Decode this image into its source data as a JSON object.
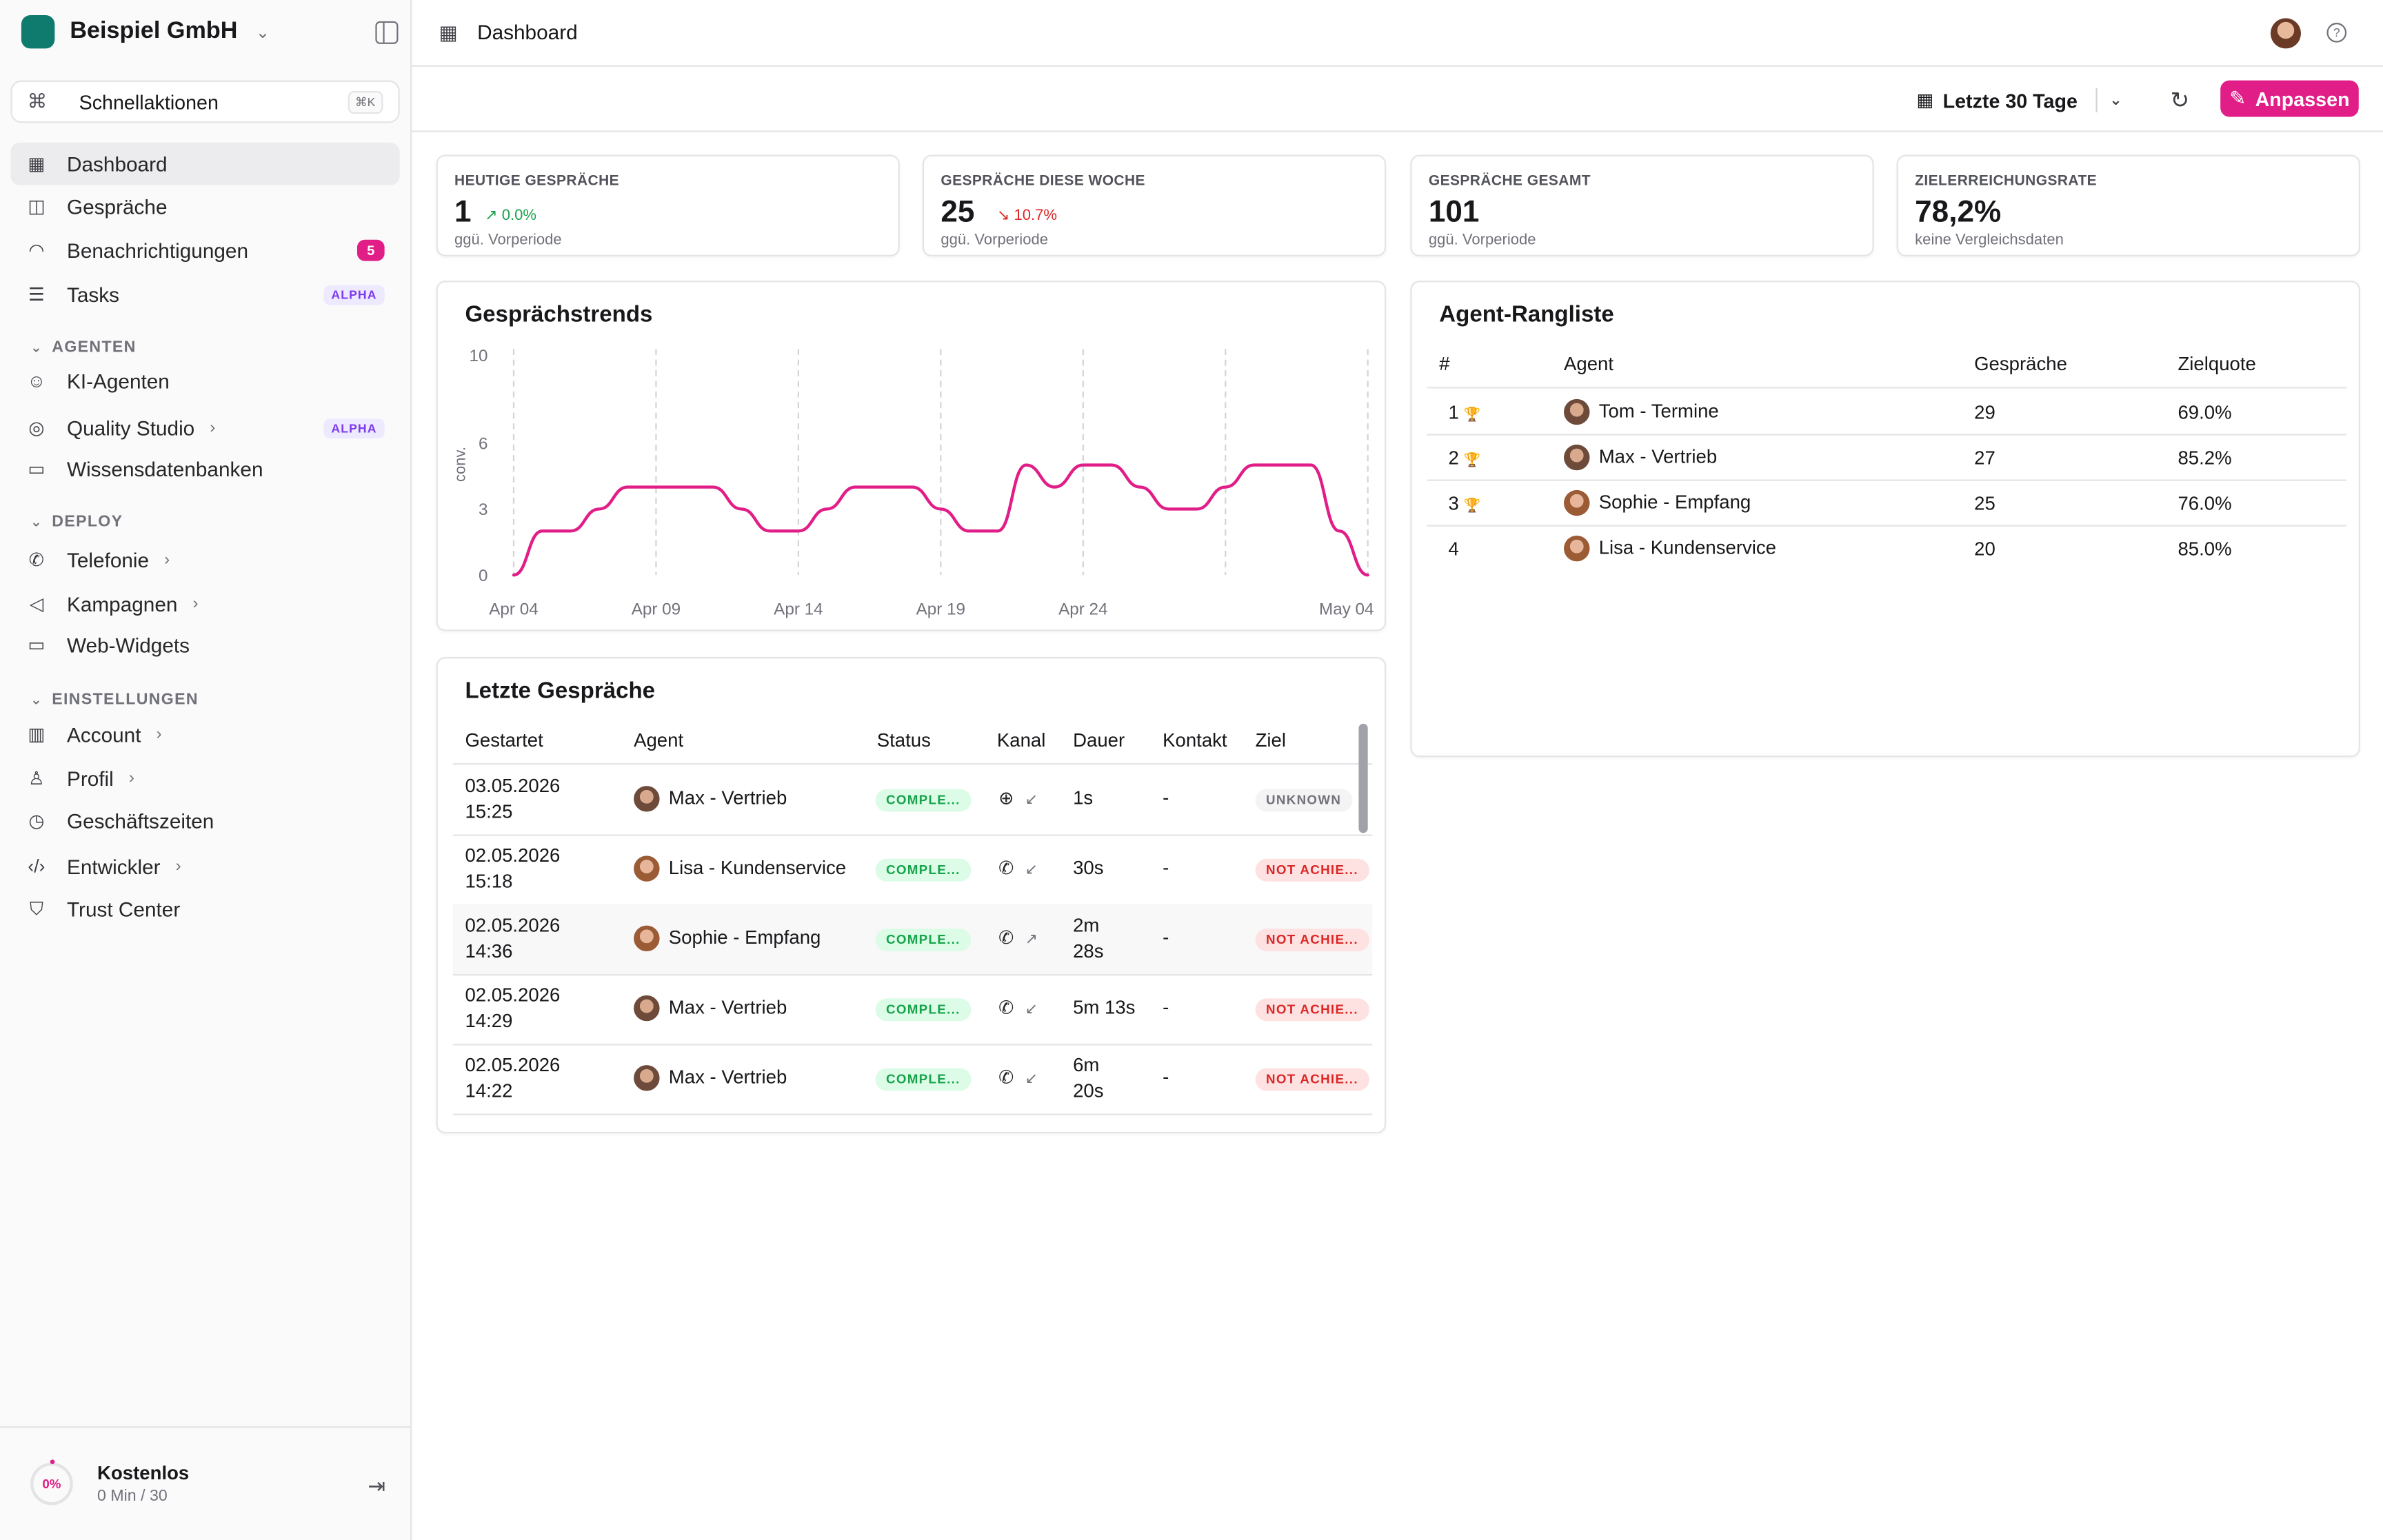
{
  "org": {
    "name": "Beispiel GmbH"
  },
  "quick": {
    "label": "Schnellaktionen",
    "shortcut": "⌘K"
  },
  "nav": {
    "dashboard": "Dashboard",
    "gespraeche": "Gespräche",
    "benachrichtigungen": "Benachrichtigungen",
    "benachrichtigungen_count": "5",
    "tasks": "Tasks",
    "tasks_badge": "ALPHA",
    "section_agenten": "AGENTEN",
    "ki_agenten": "KI-Agenten",
    "quality_studio": "Quality Studio",
    "quality_badge": "ALPHA",
    "wissensdatenbanken": "Wissensdatenbanken",
    "section_deploy": "DEPLOY",
    "telefonie": "Telefonie",
    "kampagnen": "Kampagnen",
    "web_widgets": "Web-Widgets",
    "section_einstellungen": "EINSTELLUNGEN",
    "account": "Account",
    "profil": "Profil",
    "geschaeftszeiten": "Geschäftszeiten",
    "entwickler": "Entwickler",
    "trust_center": "Trust Center"
  },
  "plan": {
    "name": "Kostenlos",
    "usage": "0 Min / 30",
    "percent": "0%"
  },
  "topbar": {
    "title": "Dashboard"
  },
  "toolbar": {
    "range": "Letzte 30 Tage",
    "customize": "Anpassen"
  },
  "stats": [
    {
      "label": "HEUTIGE GESPRÄCHE",
      "value": "1",
      "change": "↗ 0.0%",
      "sub": "ggü. Vorperiode"
    },
    {
      "label": "GESPRÄCHE DIESE WOCHE",
      "value": "25",
      "change": "↘ 10.7%",
      "sub": "ggü. Vorperiode"
    },
    {
      "label": "GESPRÄCHE GESAMT",
      "value": "101",
      "change": "",
      "sub": "ggü. Vorperiode"
    },
    {
      "label": "ZIELERREICHUNGSRATE",
      "value": "78,2%",
      "change": "",
      "sub": "keine Vergleichsdaten"
    }
  ],
  "colors": {
    "accent": "#e11d87",
    "up": "#16a34a",
    "down": "#dc2626"
  },
  "trend": {
    "title": "Gesprächstrends",
    "ylabel": "conv."
  },
  "chart_data": {
    "type": "line",
    "title": "Gesprächstrends",
    "ylabel": "conv.",
    "ylim": [
      0,
      10
    ],
    "yticks": [
      "0",
      "3",
      "6",
      "10"
    ],
    "xticks": [
      "Apr 04",
      "Apr 09",
      "Apr 14",
      "Apr 19",
      "Apr 24",
      "May 04"
    ],
    "series": [
      {
        "color": "#e11d87",
        "points": [
          [
            "2026-04-04",
            0
          ],
          [
            "2026-04-05",
            2
          ],
          [
            "2026-04-06",
            2
          ],
          [
            "2026-04-07",
            3
          ],
          [
            "2026-04-08",
            4
          ],
          [
            "2026-04-09",
            4
          ],
          [
            "2026-04-10",
            4
          ],
          [
            "2026-04-11",
            4
          ],
          [
            "2026-04-12",
            3
          ],
          [
            "2026-04-13",
            2
          ],
          [
            "2026-04-14",
            2
          ],
          [
            "2026-04-15",
            3
          ],
          [
            "2026-04-16",
            4
          ],
          [
            "2026-04-17",
            4
          ],
          [
            "2026-04-18",
            4
          ],
          [
            "2026-04-19",
            3
          ],
          [
            "2026-04-20",
            2
          ],
          [
            "2026-04-21",
            2
          ],
          [
            "2026-04-22",
            5
          ],
          [
            "2026-04-23",
            4
          ],
          [
            "2026-04-24",
            5
          ],
          [
            "2026-04-25",
            5
          ],
          [
            "2026-04-26",
            4
          ],
          [
            "2026-04-27",
            3
          ],
          [
            "2026-04-28",
            3
          ],
          [
            "2026-04-29",
            4
          ],
          [
            "2026-04-30",
            5
          ],
          [
            "2026-05-01",
            5
          ],
          [
            "2026-05-02",
            5
          ],
          [
            "2026-05-03",
            2
          ],
          [
            "2026-05-04",
            0
          ]
        ]
      }
    ],
    "grid": "vertical dashed"
  },
  "ranking": {
    "title": "Agent-Rangliste",
    "headers": [
      "#",
      "Agent",
      "Gespräche",
      "Zielquote"
    ],
    "rows": [
      {
        "rank": "1",
        "agent": "Tom - Termine",
        "calls": "29",
        "rate": "69.0%",
        "trophy": "gold"
      },
      {
        "rank": "2",
        "agent": "Max - Vertrieb",
        "calls": "27",
        "rate": "85.2%",
        "trophy": "silver"
      },
      {
        "rank": "3",
        "agent": "Sophie - Empfang",
        "calls": "25",
        "rate": "76.0%",
        "trophy": "bronze"
      },
      {
        "rank": "4",
        "agent": "Lisa - Kundenservice",
        "calls": "20",
        "rate": "85.0%",
        "trophy": ""
      }
    ]
  },
  "recent": {
    "title": "Letzte Gespräche",
    "headers": [
      "Gestartet",
      "Agent",
      "Status",
      "Kanal",
      "Dauer",
      "Kontakt",
      "Ziel"
    ],
    "rows": [
      {
        "date": "03.05.2026",
        "time": "15:25",
        "agent": "Max - Vertrieb",
        "status": "COMPLE...",
        "channel": "web",
        "direction": "↙",
        "duration1": "1s",
        "duration2": "",
        "contact": "-",
        "goal": "UNKNOWN",
        "goal_type": "gray"
      },
      {
        "date": "02.05.2026",
        "time": "15:18",
        "agent": "Lisa - Kundenservice",
        "status": "COMPLE...",
        "channel": "phone",
        "direction": "↙",
        "duration1": "30s",
        "duration2": "",
        "contact": "-",
        "goal": "NOT ACHIE...",
        "goal_type": "red"
      },
      {
        "date": "02.05.2026",
        "time": "14:36",
        "agent": "Sophie - Empfang",
        "status": "COMPLE...",
        "channel": "phone",
        "direction": "↗",
        "duration1": "2m",
        "duration2": "28s",
        "contact": "-",
        "goal": "NOT ACHIE...",
        "goal_type": "red"
      },
      {
        "date": "02.05.2026",
        "time": "14:29",
        "agent": "Max - Vertrieb",
        "status": "COMPLE...",
        "channel": "phone",
        "direction": "↙",
        "duration1": "5m 13s",
        "duration2": "",
        "contact": "-",
        "goal": "NOT ACHIE...",
        "goal_type": "red"
      },
      {
        "date": "02.05.2026",
        "time": "14:22",
        "agent": "Max - Vertrieb",
        "status": "COMPLE...",
        "channel": "phone",
        "direction": "↙",
        "duration1": "6m",
        "duration2": "20s",
        "contact": "-",
        "goal": "NOT ACHIE...",
        "goal_type": "red"
      }
    ]
  }
}
